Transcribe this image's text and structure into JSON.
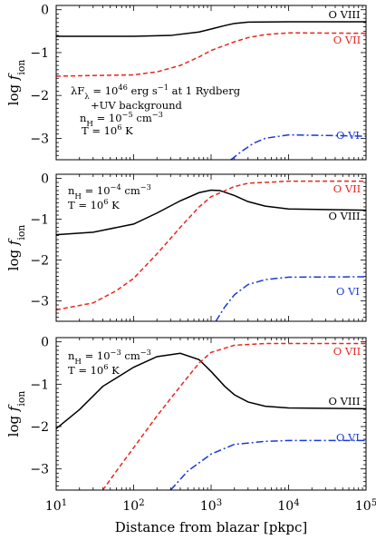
{
  "chart_data": [
    {
      "type": "line",
      "panel": "top",
      "annotation": [
        "λF_λ = 10^46 erg s^−1 at 1 Rydberg",
        "+UV background",
        "n_H = 10^−5 cm^−3",
        "T = 10^6 K"
      ],
      "xlabel": "Distance from blazar [pkpc]",
      "ylabel": "log f_ion",
      "xscale": "log",
      "xlim": [
        10,
        100000
      ],
      "ylim": [
        -3.5,
        0.1
      ],
      "x_ticks": [
        "10^1",
        "10^2",
        "10^3",
        "10^4",
        "10^5"
      ],
      "y_ticks": [
        "0",
        "−1",
        "−2",
        "−3"
      ],
      "series": [
        {
          "name": "O VIII",
          "color": "#000000",
          "style": "solid",
          "points": [
            [
              10,
              -0.62
            ],
            [
              100,
              -0.62
            ],
            [
              300,
              -0.6
            ],
            [
              700,
              -0.52
            ],
            [
              1000,
              -0.45
            ],
            [
              1500,
              -0.37
            ],
            [
              2000,
              -0.32
            ],
            [
              3000,
              -0.29
            ],
            [
              10000,
              -0.28
            ],
            [
              100000,
              -0.28
            ]
          ]
        },
        {
          "name": "O VII",
          "color": "#e8261e",
          "style": "dashed",
          "points": [
            [
              10,
              -1.55
            ],
            [
              100,
              -1.52
            ],
            [
              200,
              -1.45
            ],
            [
              400,
              -1.3
            ],
            [
              700,
              -1.1
            ],
            [
              1000,
              -0.95
            ],
            [
              2000,
              -0.75
            ],
            [
              3000,
              -0.65
            ],
            [
              5000,
              -0.58
            ],
            [
              10000,
              -0.54
            ],
            [
              100000,
              -0.55
            ]
          ]
        },
        {
          "name": "O VI",
          "color": "#1a3ad6",
          "style": "dashdot",
          "points": [
            [
              1800,
              -3.5
            ],
            [
              2500,
              -3.3
            ],
            [
              3500,
              -3.12
            ],
            [
              5000,
              -3.0
            ],
            [
              10000,
              -2.92
            ],
            [
              100000,
              -2.95
            ]
          ]
        }
      ]
    },
    {
      "type": "line",
      "panel": "middle",
      "annotation": [
        "n_H = 10^−4 cm^−3",
        "T = 10^6 K"
      ],
      "xlabel": "Distance from blazar [pkpc]",
      "ylabel": "log f_ion",
      "xscale": "log",
      "xlim": [
        10,
        100000
      ],
      "ylim": [
        -3.5,
        0.1
      ],
      "x_ticks": [
        "10^1",
        "10^2",
        "10^3",
        "10^4",
        "10^5"
      ],
      "y_ticks": [
        "0",
        "−1",
        "−2",
        "−3"
      ],
      "series": [
        {
          "name": "O VIII",
          "color": "#000000",
          "style": "solid",
          "points": [
            [
              10,
              -1.38
            ],
            [
              30,
              -1.32
            ],
            [
              100,
              -1.12
            ],
            [
              200,
              -0.85
            ],
            [
              400,
              -0.55
            ],
            [
              700,
              -0.35
            ],
            [
              1000,
              -0.29
            ],
            [
              1300,
              -0.3
            ],
            [
              2000,
              -0.42
            ],
            [
              3000,
              -0.57
            ],
            [
              5000,
              -0.68
            ],
            [
              10000,
              -0.75
            ],
            [
              100000,
              -0.78
            ]
          ]
        },
        {
          "name": "O VII",
          "color": "#e8261e",
          "style": "dashed",
          "points": [
            [
              10,
              -3.22
            ],
            [
              30,
              -3.05
            ],
            [
              60,
              -2.75
            ],
            [
              100,
              -2.45
            ],
            [
              200,
              -1.85
            ],
            [
              400,
              -1.2
            ],
            [
              700,
              -0.7
            ],
            [
              1000,
              -0.45
            ],
            [
              2000,
              -0.2
            ],
            [
              3000,
              -0.12
            ],
            [
              10000,
              -0.07
            ],
            [
              100000,
              -0.07
            ]
          ]
        },
        {
          "name": "O VI",
          "color": "#1a3ad6",
          "style": "dashdot",
          "points": [
            [
              1150,
              -3.5
            ],
            [
              1500,
              -3.15
            ],
            [
              2000,
              -2.85
            ],
            [
              3000,
              -2.6
            ],
            [
              5000,
              -2.48
            ],
            [
              10000,
              -2.42
            ],
            [
              100000,
              -2.41
            ]
          ]
        }
      ]
    },
    {
      "type": "line",
      "panel": "bottom",
      "annotation": [
        "n_H = 10^−3 cm^−3",
        "T = 10^6 K"
      ],
      "xlabel": "Distance from blazar [pkpc]",
      "ylabel": "log f_ion",
      "xscale": "log",
      "xlim": [
        10,
        100000
      ],
      "ylim": [
        -3.5,
        0.1
      ],
      "x_ticks": [
        "10^1",
        "10^2",
        "10^3",
        "10^4",
        "10^5"
      ],
      "y_ticks": [
        "0",
        "−1",
        "−2",
        "−3"
      ],
      "series": [
        {
          "name": "O VIII",
          "color": "#000000",
          "style": "solid",
          "points": [
            [
              10,
              -2.05
            ],
            [
              20,
              -1.6
            ],
            [
              40,
              -1.05
            ],
            [
              100,
              -0.6
            ],
            [
              200,
              -0.35
            ],
            [
              400,
              -0.27
            ],
            [
              700,
              -0.42
            ],
            [
              1000,
              -0.7
            ],
            [
              1500,
              -1.05
            ],
            [
              2000,
              -1.25
            ],
            [
              3000,
              -1.42
            ],
            [
              5000,
              -1.52
            ],
            [
              10000,
              -1.56
            ],
            [
              100000,
              -1.58
            ]
          ]
        },
        {
          "name": "O VII",
          "color": "#e8261e",
          "style": "dashed",
          "points": [
            [
              40,
              -3.5
            ],
            [
              60,
              -3.05
            ],
            [
              100,
              -2.5
            ],
            [
              200,
              -1.75
            ],
            [
              400,
              -1.05
            ],
            [
              700,
              -0.5
            ],
            [
              1000,
              -0.25
            ],
            [
              2000,
              -0.08
            ],
            [
              5000,
              -0.04
            ],
            [
              100000,
              -0.04
            ]
          ]
        },
        {
          "name": "O VI",
          "color": "#1a3ad6",
          "style": "dashdot",
          "points": [
            [
              300,
              -3.5
            ],
            [
              500,
              -3.05
            ],
            [
              800,
              -2.78
            ],
            [
              1000,
              -2.65
            ],
            [
              2000,
              -2.42
            ],
            [
              5000,
              -2.35
            ],
            [
              10000,
              -2.33
            ],
            [
              100000,
              -2.33
            ]
          ]
        }
      ]
    }
  ]
}
